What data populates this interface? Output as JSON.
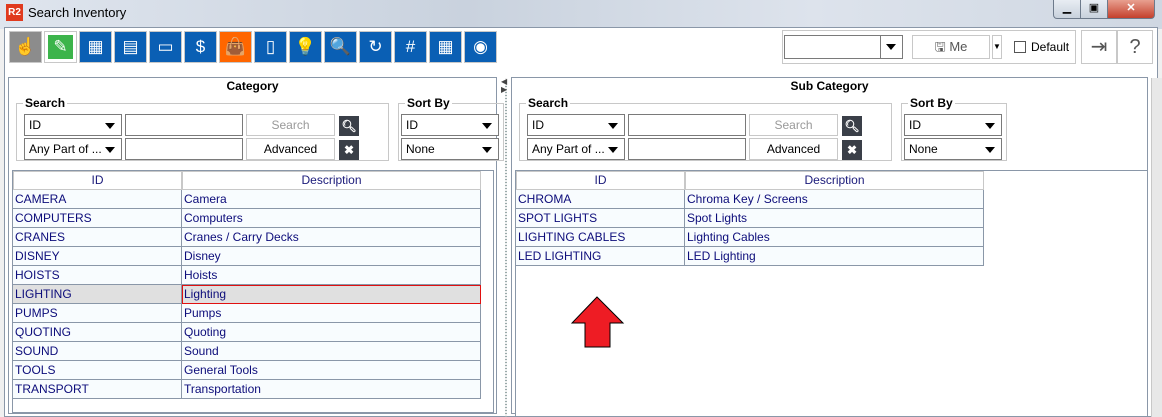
{
  "window": {
    "title": "Search Inventory",
    "logo": "R2",
    "controls": [
      "minimize",
      "maximize",
      "close"
    ]
  },
  "toolbar": {
    "icons": [
      {
        "name": "hand-pointer-icon",
        "glyph": "☝",
        "color": "#8c8c8c"
      },
      {
        "name": "pencil-edit-icon",
        "glyph": "✎",
        "color": "#3cb44b"
      },
      {
        "name": "hierarchy-icon",
        "glyph": "▦",
        "color": "#0a5fb4"
      },
      {
        "name": "message-icon",
        "glyph": "▤",
        "color": "#0a5fb4"
      },
      {
        "name": "projector-icon",
        "glyph": "▭",
        "color": "#0a5fb4"
      },
      {
        "name": "price-tag-icon",
        "glyph": "$",
        "color": "#0a5fb4"
      },
      {
        "name": "shopping-bag-icon",
        "glyph": "👜",
        "color": "#ff6600"
      },
      {
        "name": "book-icon",
        "glyph": "▯",
        "color": "#0a5fb4"
      },
      {
        "name": "lightbulb-icon",
        "glyph": "💡",
        "color": "#0a5fb4"
      },
      {
        "name": "clipboard-search-icon",
        "glyph": "🔍",
        "color": "#0a5fb4"
      },
      {
        "name": "tag-refresh-icon",
        "glyph": "↻",
        "color": "#0a5fb4"
      },
      {
        "name": "hash-icon",
        "glyph": "#",
        "color": "#0a5fb4"
      },
      {
        "name": "calendar-projector-icon",
        "glyph": "▦",
        "color": "#0a5fb4"
      },
      {
        "name": "projector-view-icon",
        "glyph": "◉",
        "color": "#0a5fb4"
      }
    ],
    "layout_select": "",
    "save_label": "Me",
    "default_label": "Default",
    "default_checked": false,
    "exit_glyph": "⇥",
    "help_glyph": "?"
  },
  "category": {
    "title": "Category",
    "search_legend": "Search",
    "field_select": "ID",
    "match_select": "Any Part of ...",
    "search_value": "",
    "search_value2": "",
    "search_button": "Search",
    "advanced_button": "Advanced",
    "sort_legend": "Sort By",
    "sort1": "ID",
    "sort2": "None",
    "columns": [
      "ID",
      "Description"
    ],
    "rows": [
      [
        "CAMERA",
        "Camera"
      ],
      [
        "COMPUTERS",
        "Computers"
      ],
      [
        "CRANES",
        "Cranes / Carry Decks"
      ],
      [
        "DISNEY",
        "Disney"
      ],
      [
        "HOISTS",
        "Hoists"
      ],
      [
        "LIGHTING",
        "Lighting"
      ],
      [
        "PUMPS",
        "Pumps"
      ],
      [
        "QUOTING",
        "Quoting"
      ],
      [
        "SOUND",
        "Sound"
      ],
      [
        "TOOLS",
        "General Tools"
      ],
      [
        "TRANSPORT",
        "Transportation"
      ]
    ],
    "selected_row": 5
  },
  "subcategory": {
    "title": "Sub Category",
    "search_legend": "Search",
    "field_select": "ID",
    "match_select": "Any Part of ...",
    "search_value": "",
    "search_value2": "",
    "search_button": "Search",
    "advanced_button": "Advanced",
    "sort_legend": "Sort By",
    "sort1": "ID",
    "sort2": "None",
    "columns": [
      "ID",
      "Description"
    ],
    "rows": [
      [
        "CHROMA",
        "Chroma Key / Screens"
      ],
      [
        "SPOT LIGHTS",
        "Spot Lights"
      ],
      [
        "LIGHTING CABLES",
        "Lighting Cables"
      ],
      [
        "LED LIGHTING",
        "LED Lighting"
      ]
    ]
  },
  "annotation": {
    "arrow_color": "#ee1c24"
  }
}
